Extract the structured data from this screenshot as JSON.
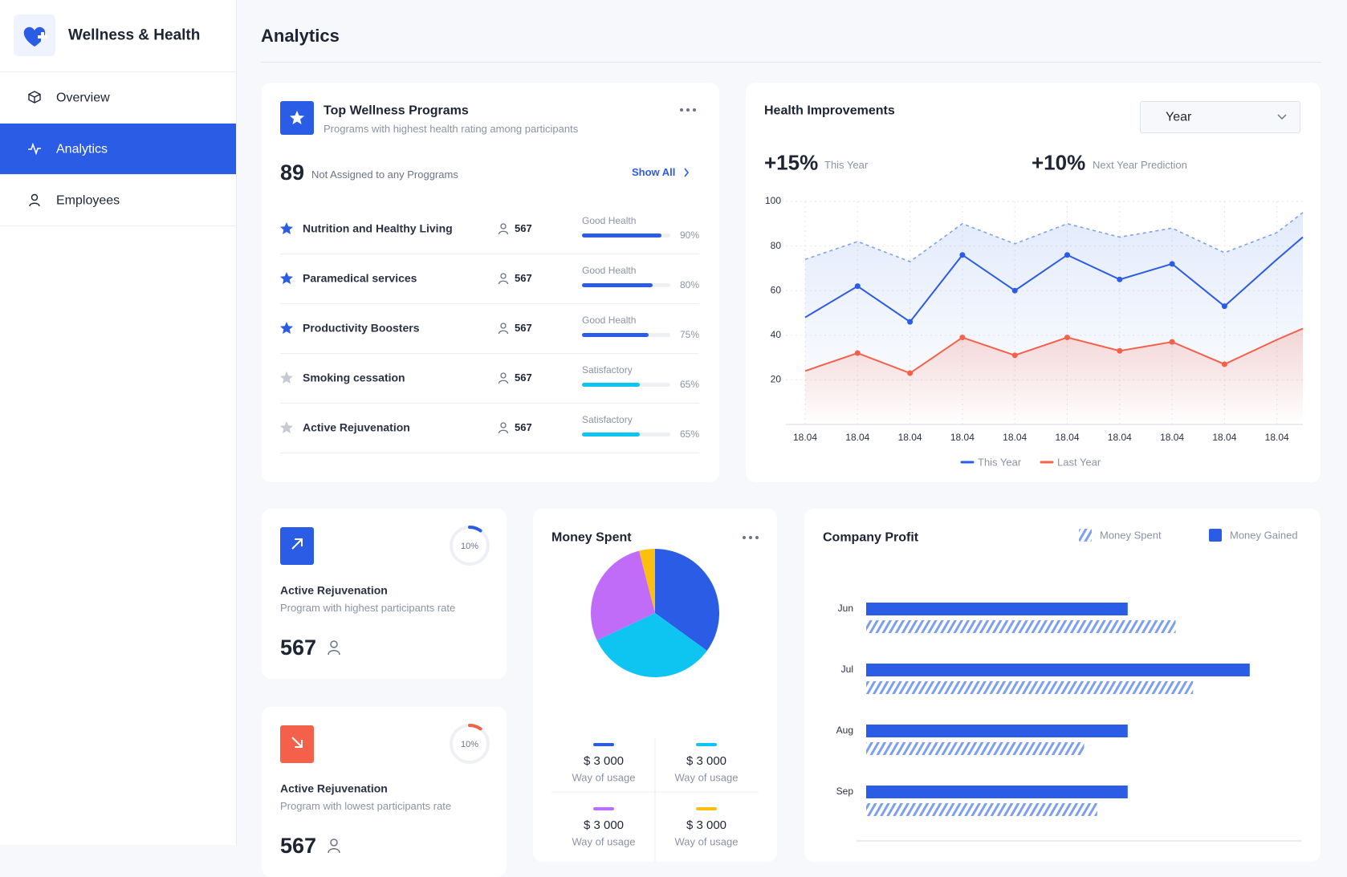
{
  "sidebar": {
    "brand": "Wellness & Health",
    "nav": [
      "Overview",
      "Analytics",
      "Employees"
    ],
    "active": 1
  },
  "header": {
    "title": "Analytics"
  },
  "programs": {
    "title": "Top Wellness Programs",
    "subtitle": "Programs with highest health rating among participants",
    "count": 89,
    "count_label": "Not Assigned to any Proggrams",
    "show_all": "Show All",
    "rows": [
      {
        "name": "Nutrition and Healthy Living",
        "participants": 567,
        "status": "Good Health",
        "value": 90,
        "value_label": "90%",
        "starred": true,
        "color": "#2b5ce6"
      },
      {
        "name": "Paramedical services",
        "participants": 567,
        "status": "Good Health",
        "value": 80,
        "value_label": "80%",
        "starred": true,
        "color": "#2b5ce6"
      },
      {
        "name": "Productivity Boosters",
        "participants": 567,
        "status": "Good Health",
        "value": 75,
        "value_label": "75%",
        "starred": true,
        "color": "#2b5ce6"
      },
      {
        "name": "Smoking cessation",
        "participants": 567,
        "status": "Satisfactory",
        "value": 65,
        "value_label": "65%",
        "starred": false,
        "color": "#0ec5f2"
      },
      {
        "name": "Active Rejuvenation",
        "participants": 567,
        "status": "Satisfactory",
        "value": 65,
        "value_label": "65%",
        "starred": false,
        "color": "#0ec5f2"
      }
    ]
  },
  "health": {
    "title": "Health Improvements",
    "select": "Year",
    "stats": [
      {
        "value": "+15%",
        "label": "This Year"
      },
      {
        "value": "+10%",
        "label": "Next Year Prediction"
      }
    ],
    "chart_data": {
      "type": "line",
      "categories": [
        "18.04",
        "18.04",
        "18.04",
        "18.04",
        "18.04",
        "18.04",
        "18.04",
        "18.04",
        "18.04",
        "18.04",
        null
      ],
      "ylim": [
        0,
        100
      ],
      "yticks": [
        20,
        40,
        60,
        80,
        100
      ],
      "grid": true,
      "series": [
        {
          "name": "This Year",
          "color": "#2b5ce6",
          "values": [
            48,
            62,
            46,
            76,
            60,
            76,
            65,
            72,
            53,
            74,
            84
          ]
        },
        {
          "name": "Last Year",
          "color": "#f5604a",
          "values": [
            24,
            32,
            23,
            39,
            31,
            39,
            33,
            37,
            27,
            38,
            43
          ]
        },
        {
          "color": "#7fa2ee",
          "dashed": true,
          "values": [
            74,
            82,
            73,
            90,
            81,
            90,
            84,
            88,
            77,
            86,
            95
          ]
        }
      ]
    }
  },
  "stat_cards": [
    {
      "title": "Active Rejuvenation",
      "subtitle": "Program with highest participants rate",
      "value": 567,
      "gauge": 10,
      "gauge_label": "10%",
      "trend": "up",
      "color": "#2b5ce6"
    },
    {
      "title": "Active Rejuvenation",
      "subtitle": "Program with lowest participants rate",
      "value": 567,
      "gauge": 10,
      "gauge_label": "10%",
      "trend": "down",
      "color": "#f5604a"
    }
  ],
  "money": {
    "title": "Money Spent",
    "chart_data": {
      "type": "pie",
      "values": [
        35,
        33,
        28,
        4
      ],
      "colors": [
        "#2b5ce6",
        "#0ec5f2",
        "#c06cf8",
        "#fdbf0f"
      ]
    },
    "legend": [
      {
        "amount": "$ 3 000",
        "label": "Way of usage"
      },
      {
        "amount": "$ 3 000",
        "label": "Way of usage"
      },
      {
        "amount": "$ 3 000",
        "label": "Way of usage"
      },
      {
        "amount": "$ 3 000",
        "label": "Way of usage"
      }
    ]
  },
  "profit": {
    "title": "Company Profit",
    "chart_data": {
      "type": "bar",
      "orientation": "horizontal",
      "categories": [
        "Jun",
        "Jul",
        "Aug",
        "Sep"
      ],
      "xlim": [
        0,
        100
      ],
      "series": [
        {
          "name": "Money Gained",
          "color": "#2b5ce6",
          "values": [
            60,
            88,
            60,
            60
          ]
        },
        {
          "name": "Money Spent",
          "color": "#7c9ff0",
          "hatched": true,
          "values": [
            71,
            75,
            50,
            53
          ]
        }
      ]
    }
  }
}
